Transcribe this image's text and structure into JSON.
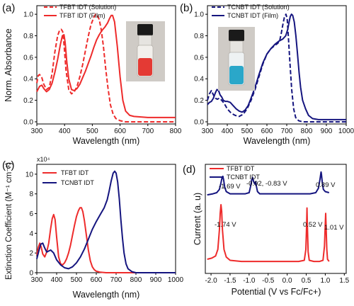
{
  "colors": {
    "red": "#ee2b2b",
    "navy": "#15157f",
    "axis": "#000000"
  },
  "chart_data": [
    {
      "id": "a",
      "panel_label": "(a)",
      "type": "line",
      "xlabel": "Wavelength (nm)",
      "ylabel": "Norm. Absorbance",
      "xlim": [
        300,
        800
      ],
      "ylim": [
        -0.02,
        1.08
      ],
      "xticks": [
        "300",
        "400",
        "500",
        "600",
        "700",
        "800"
      ],
      "yticks": [
        "0.0",
        "0.2",
        "0.4",
        "0.6",
        "0.8",
        "1.0"
      ],
      "inset": "vial-red",
      "series": [
        {
          "name": "TFBT IDT (Solution)",
          "color": "#ee2b2b",
          "dash": "dashed",
          "x": [
            300,
            305,
            310,
            318,
            325,
            335,
            345,
            355,
            365,
            375,
            382,
            388,
            393,
            398,
            405,
            415,
            425,
            435,
            445,
            455,
            465,
            475,
            485,
            495,
            505,
            512,
            518,
            525,
            532,
            540,
            548,
            556,
            565,
            575,
            585,
            600,
            620,
            650,
            700,
            750,
            800
          ],
          "y": [
            0.36,
            0.43,
            0.44,
            0.41,
            0.35,
            0.3,
            0.32,
            0.45,
            0.65,
            0.8,
            0.85,
            0.86,
            0.84,
            0.72,
            0.48,
            0.3,
            0.26,
            0.28,
            0.33,
            0.42,
            0.53,
            0.66,
            0.79,
            0.9,
            0.97,
            1.0,
            0.99,
            0.95,
            0.86,
            0.7,
            0.5,
            0.32,
            0.16,
            0.07,
            0.03,
            0.01,
            0.0,
            0.0,
            0.0,
            0.0,
            0.0
          ]
        },
        {
          "name": "TFBT IDT (Film)",
          "color": "#ee2b2b",
          "dash": "solid",
          "x": [
            300,
            310,
            318,
            325,
            335,
            345,
            355,
            365,
            375,
            385,
            392,
            398,
            402,
            408,
            415,
            425,
            435,
            445,
            455,
            465,
            475,
            485,
            495,
            505,
            515,
            525,
            535,
            545,
            555,
            562,
            568,
            573,
            580,
            590,
            600,
            610,
            620,
            635,
            650,
            700,
            750,
            800
          ],
          "y": [
            0.28,
            0.33,
            0.34,
            0.31,
            0.28,
            0.3,
            0.36,
            0.46,
            0.58,
            0.72,
            0.8,
            0.81,
            0.74,
            0.56,
            0.4,
            0.3,
            0.29,
            0.31,
            0.35,
            0.41,
            0.47,
            0.54,
            0.61,
            0.69,
            0.76,
            0.81,
            0.85,
            0.88,
            0.92,
            0.96,
            0.99,
            0.99,
            0.93,
            0.7,
            0.42,
            0.2,
            0.1,
            0.06,
            0.05,
            0.04,
            0.04,
            0.04
          ]
        }
      ]
    },
    {
      "id": "b",
      "panel_label": "(b)",
      "type": "line",
      "xlabel": "Wavelength (nm)",
      "ylabel": "",
      "xlim": [
        300,
        1000
      ],
      "ylim": [
        -0.02,
        1.08
      ],
      "xticks": [
        "300",
        "400",
        "500",
        "600",
        "700",
        "800",
        "900",
        "1000"
      ],
      "yticks": [
        "0.0",
        "0.2",
        "0.4",
        "0.6",
        "0.8",
        "1.0"
      ],
      "inset": "vial-blue",
      "series": [
        {
          "name": "TCNBT IDT (Solution)",
          "color": "#15157f",
          "dash": "dashed",
          "x": [
            300,
            310,
            320,
            330,
            340,
            350,
            360,
            372,
            385,
            400,
            420,
            440,
            460,
            480,
            500,
            520,
            540,
            560,
            580,
            600,
            620,
            640,
            655,
            665,
            672,
            680,
            688,
            696,
            702,
            708,
            716,
            725,
            735,
            745,
            760,
            780,
            800,
            850,
            900,
            950,
            1000
          ],
          "y": [
            0.2,
            0.26,
            0.29,
            0.25,
            0.22,
            0.21,
            0.22,
            0.2,
            0.17,
            0.12,
            0.08,
            0.06,
            0.05,
            0.07,
            0.12,
            0.2,
            0.3,
            0.42,
            0.54,
            0.63,
            0.68,
            0.71,
            0.73,
            0.76,
            0.82,
            0.9,
            0.97,
            1.0,
            0.96,
            0.8,
            0.55,
            0.3,
            0.12,
            0.04,
            0.01,
            0.0,
            0.0,
            0.0,
            0.0,
            0.0,
            0.0
          ]
        },
        {
          "name": "TCNBT IDT (Film)",
          "color": "#15157f",
          "dash": "solid",
          "x": [
            300,
            310,
            320,
            330,
            340,
            348,
            356,
            364,
            372,
            380,
            390,
            400,
            415,
            430,
            445,
            460,
            475,
            490,
            505,
            520,
            540,
            560,
            580,
            600,
            620,
            640,
            660,
            680,
            695,
            705,
            712,
            718,
            724,
            730,
            738,
            746,
            754,
            762,
            770,
            780,
            795,
            810,
            830,
            860,
            900,
            950,
            1000
          ],
          "y": [
            0.16,
            0.18,
            0.19,
            0.22,
            0.27,
            0.3,
            0.29,
            0.25,
            0.23,
            0.2,
            0.19,
            0.19,
            0.18,
            0.15,
            0.12,
            0.1,
            0.09,
            0.11,
            0.15,
            0.22,
            0.32,
            0.44,
            0.55,
            0.63,
            0.68,
            0.72,
            0.75,
            0.77,
            0.8,
            0.86,
            0.93,
            0.98,
            1.0,
            0.99,
            0.93,
            0.8,
            0.64,
            0.46,
            0.32,
            0.2,
            0.12,
            0.06,
            0.03,
            0.02,
            0.02,
            0.02,
            0.02
          ]
        }
      ]
    },
    {
      "id": "c",
      "panel_label": "(c)",
      "type": "line",
      "xlabel": "Wavelength (nm)",
      "ylabel": "Extinction Coefficient (M⁻¹ cm⁻¹)",
      "multiplier": "x10⁴",
      "xlim": [
        300,
        1000
      ],
      "ylim": [
        0,
        11
      ],
      "xticks": [
        "300",
        "400",
        "500",
        "600",
        "700",
        "800",
        "900",
        "1000"
      ],
      "yticks": [
        "0",
        "2",
        "4",
        "6",
        "8",
        "10"
      ],
      "series": [
        {
          "name": "TFBT IDT",
          "color": "#ee2b2b",
          "dash": "solid",
          "x": [
            300,
            308,
            315,
            322,
            330,
            340,
            350,
            360,
            370,
            378,
            385,
            392,
            400,
            410,
            420,
            430,
            440,
            450,
            460,
            470,
            480,
            490,
            500,
            510,
            518,
            525,
            532,
            540,
            550,
            560,
            570,
            580,
            590,
            600,
            620,
            650,
            700,
            800,
            900,
            1000
          ],
          "y": [
            1.8,
            2.6,
            3.0,
            2.6,
            1.9,
            1.6,
            2.1,
            3.0,
            4.5,
            5.5,
            5.9,
            5.4,
            3.6,
            1.6,
            0.9,
            0.8,
            1.0,
            1.4,
            2.0,
            2.8,
            3.8,
            4.8,
            5.7,
            6.3,
            6.6,
            6.6,
            6.2,
            5.3,
            3.8,
            2.3,
            1.2,
            0.6,
            0.3,
            0.15,
            0.05,
            0.0,
            0.0,
            0.0,
            0.0,
            0.0
          ]
        },
        {
          "name": "TCNBT IDT",
          "color": "#15157f",
          "dash": "solid",
          "x": [
            300,
            310,
            320,
            330,
            340,
            350,
            360,
            370,
            385,
            400,
            420,
            440,
            460,
            480,
            500,
            520,
            540,
            560,
            580,
            600,
            620,
            640,
            655,
            665,
            675,
            685,
            693,
            700,
            708,
            716,
            724,
            732,
            740,
            750,
            760,
            780,
            800,
            850,
            900,
            1000
          ],
          "y": [
            1.4,
            2.2,
            2.9,
            3.0,
            2.5,
            2.1,
            2.2,
            2.3,
            2.0,
            1.3,
            0.8,
            0.5,
            0.4,
            0.6,
            1.0,
            1.6,
            2.4,
            3.4,
            4.4,
            5.2,
            5.9,
            6.6,
            7.4,
            8.3,
            9.3,
            10.1,
            10.3,
            10.1,
            9.2,
            7.5,
            5.4,
            3.5,
            2.0,
            0.9,
            0.4,
            0.1,
            0.0,
            0.0,
            0.0,
            0.0
          ]
        }
      ]
    },
    {
      "id": "d",
      "panel_label": "(d)",
      "type": "line",
      "xlabel": "Potential (V vs Fc/Fc+)",
      "ylabel": "Current (a. u)",
      "xlim": [
        -2.15,
        1.55
      ],
      "ylim": [
        0,
        1
      ],
      "xticks": [
        "-2.0",
        "-1.5",
        "-1.0",
        "-0.5",
        "0.0",
        "0.5",
        "1.0",
        "1.5"
      ],
      "annotations": {
        "navy": [
          "-1.69 V",
          "-0.92, -0.83 V",
          "0.89 V"
        ],
        "red": [
          "-1.74 V",
          "0.52 V",
          "1.01 V"
        ]
      },
      "series": [
        {
          "name": "TFBT IDT",
          "color": "#ee2b2b",
          "dash": "solid",
          "x": [
            -2.1,
            -1.98,
            -1.88,
            -1.82,
            -1.78,
            -1.76,
            -1.74,
            -1.72,
            -1.7,
            -1.66,
            -1.6,
            -1.5,
            -1.2,
            -0.9,
            -0.6,
            -0.3,
            0.0,
            0.3,
            0.45,
            0.49,
            0.51,
            0.52,
            0.53,
            0.55,
            0.58,
            0.7,
            0.85,
            0.94,
            0.98,
            1.0,
            1.01,
            1.02,
            1.04,
            1.06,
            1.1
          ],
          "y": [
            0.13,
            0.14,
            0.16,
            0.22,
            0.4,
            0.55,
            0.63,
            0.57,
            0.4,
            0.22,
            0.15,
            0.12,
            0.11,
            0.11,
            0.11,
            0.11,
            0.11,
            0.11,
            0.12,
            0.22,
            0.45,
            0.6,
            0.45,
            0.2,
            0.12,
            0.11,
            0.11,
            0.12,
            0.25,
            0.45,
            0.55,
            0.45,
            0.22,
            0.13,
            0.11
          ]
        },
        {
          "name": "TCNBT IDT",
          "color": "#15157f",
          "dash": "solid",
          "x": [
            -2.1,
            -1.95,
            -1.85,
            -1.78,
            -1.74,
            -1.71,
            -1.69,
            -1.67,
            -1.64,
            -1.6,
            -1.5,
            -1.3,
            -1.1,
            -1.0,
            -0.96,
            -0.93,
            -0.91,
            -0.88,
            -0.85,
            -0.83,
            -0.81,
            -0.78,
            -0.72,
            -0.6,
            -0.3,
            0.0,
            0.3,
            0.6,
            0.75,
            0.82,
            0.86,
            0.88,
            0.89,
            0.9,
            0.92,
            0.95,
            1.0,
            1.1
          ],
          "y": [
            0.72,
            0.73,
            0.74,
            0.77,
            0.83,
            0.88,
            0.89,
            0.86,
            0.79,
            0.75,
            0.73,
            0.73,
            0.73,
            0.74,
            0.8,
            0.86,
            0.88,
            0.84,
            0.82,
            0.84,
            0.8,
            0.75,
            0.73,
            0.73,
            0.73,
            0.73,
            0.73,
            0.73,
            0.74,
            0.78,
            0.86,
            0.91,
            0.93,
            0.91,
            0.84,
            0.77,
            0.75,
            0.74
          ]
        }
      ]
    }
  ]
}
